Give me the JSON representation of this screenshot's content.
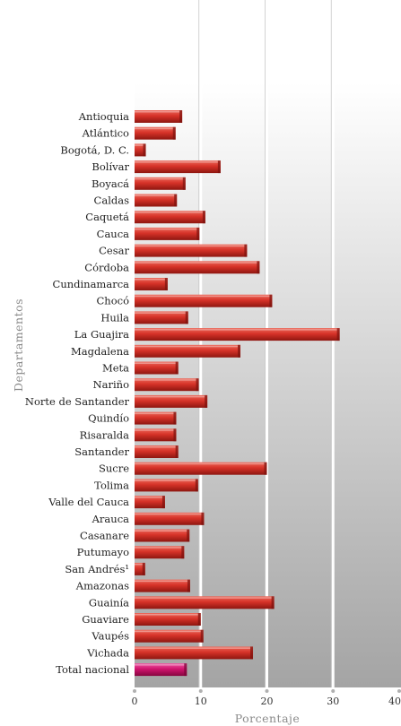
{
  "chart_data": {
    "type": "bar",
    "orientation": "horizontal",
    "xlabel": "Porcentaje",
    "ylabel": "Departamentos",
    "xlim": [
      0,
      40
    ],
    "xticks": [
      0,
      10,
      20,
      30,
      40
    ],
    "grid": true,
    "categories": [
      "Antioquia",
      "Atlántico",
      "Bogotá, D. C.",
      "Bolívar",
      "Boyacá",
      "Caldas",
      "Caquetá",
      "Cauca",
      "Cesar",
      "Córdoba",
      "Cundinamarca",
      "Chocó",
      "Huila",
      "La Guajira",
      "Magdalena",
      "Meta",
      "Nariño",
      "Norte de Santander",
      "Quindío",
      "Risaralda",
      "Santander",
      "Sucre",
      "Tolima",
      "Valle del Cauca",
      "Arauca",
      "Casanare",
      "Putumayo",
      "San Andrés¹",
      "Amazonas",
      "Guainía",
      "Guaviare",
      "Vaupés",
      "Vichada",
      "Total nacional"
    ],
    "values": [
      7.2,
      6.2,
      1.7,
      13.0,
      7.7,
      6.4,
      10.7,
      9.8,
      17.0,
      18.9,
      5.0,
      20.8,
      8.1,
      31.0,
      16.0,
      6.6,
      9.7,
      11.0,
      6.3,
      6.3,
      6.6,
      20.0,
      9.6,
      4.6,
      10.5,
      8.3,
      7.5,
      1.6,
      8.4,
      21.1,
      10.0,
      10.4,
      17.9,
      7.9
    ],
    "highlight_category": "Total nacional",
    "colors": {
      "bar": "#d63228",
      "highlight": "#d0146e",
      "gridline": "#ffffff"
    }
  }
}
